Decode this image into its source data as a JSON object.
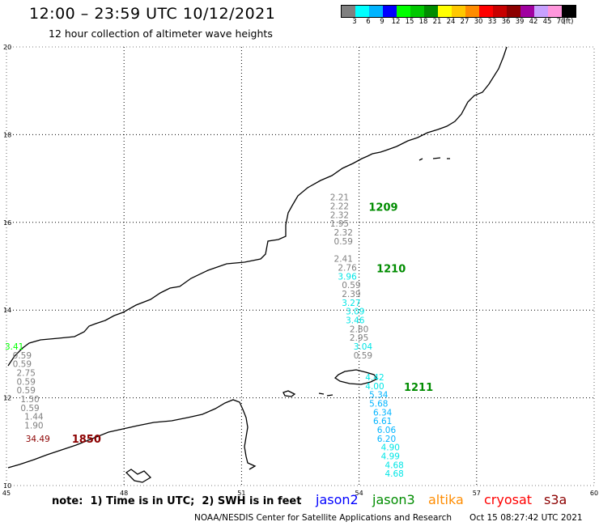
{
  "header": {
    "title": "12:00 – 23:59 UTC 10/12/2021",
    "subtitle": "12 hour collection of altimeter wave heights"
  },
  "color_scale": {
    "colors": [
      "#808080",
      "#00ffff",
      "#00b4ff",
      "#0000ff",
      "#00ff00",
      "#00c800",
      "#008c00",
      "#ffff00",
      "#ffc800",
      "#ff8c00",
      "#ff0000",
      "#c80000",
      "#8c0000",
      "#a000a0",
      "#c8a0ff",
      "#ff96dc",
      "#000000"
    ],
    "labels": [
      "3",
      "6",
      "9",
      "12",
      "15",
      "18",
      "21",
      "24",
      "27",
      "30",
      "33",
      "36",
      "39",
      "42",
      "45",
      "70",
      "(ft)"
    ]
  },
  "axes": {
    "lat_labels": [
      "20",
      "18",
      "16",
      "14",
      "12",
      "10"
    ],
    "lon_labels": [
      "45",
      "48",
      "51",
      "54",
      "57",
      "60"
    ],
    "lat_range": [
      10,
      20
    ],
    "lon_range": [
      45,
      60
    ]
  },
  "satellite_colors": {
    "jason2": "#0000ff",
    "jason3": "#008c00",
    "altika": "#ff8c00",
    "cryosat": "#ff0000",
    "s3a": "#8c0000",
    "low": "#808080",
    "cyan": "#00e6e6",
    "blue": "#00b4ff",
    "green": "#00ff00"
  },
  "passes": [
    {
      "time": "1209",
      "time_color": "#008c00",
      "obs": [
        {
          "lon": 53.5,
          "lat": 16.5,
          "v": "2.21",
          "c": "#808080"
        },
        {
          "lon": 53.5,
          "lat": 16.3,
          "v": "2.22",
          "c": "#808080"
        },
        {
          "lon": 53.5,
          "lat": 16.1,
          "v": "2.32",
          "c": "#808080"
        },
        {
          "lon": 53.5,
          "lat": 15.9,
          "v": "1.95",
          "c": "#808080"
        },
        {
          "lon": 53.6,
          "lat": 15.7,
          "v": "2.32",
          "c": "#808080"
        },
        {
          "lon": 53.6,
          "lat": 15.5,
          "v": "0.59",
          "c": "#808080"
        }
      ]
    },
    {
      "time": "1210",
      "time_color": "#008c00",
      "obs": [
        {
          "lon": 53.6,
          "lat": 15.1,
          "v": "2.41",
          "c": "#808080"
        },
        {
          "lon": 53.7,
          "lat": 14.9,
          "v": "2.76",
          "c": "#808080"
        },
        {
          "lon": 53.7,
          "lat": 14.7,
          "v": "3.96",
          "c": "#00e6e6"
        },
        {
          "lon": 53.8,
          "lat": 14.5,
          "v": "0.59",
          "c": "#808080"
        },
        {
          "lon": 53.8,
          "lat": 14.3,
          "v": "2.39",
          "c": "#808080"
        },
        {
          "lon": 53.8,
          "lat": 14.1,
          "v": "3.27",
          "c": "#00e6e6"
        },
        {
          "lon": 53.9,
          "lat": 13.9,
          "v": "3.09",
          "c": "#00e6e6"
        },
        {
          "lon": 53.9,
          "lat": 13.7,
          "v": "3.46",
          "c": "#00e6e6"
        },
        {
          "lon": 54.0,
          "lat": 13.5,
          "v": "2.80",
          "c": "#808080"
        },
        {
          "lon": 54.0,
          "lat": 13.3,
          "v": "2.95",
          "c": "#808080"
        },
        {
          "lon": 54.1,
          "lat": 13.1,
          "v": "3.04",
          "c": "#00e6e6"
        },
        {
          "lon": 54.1,
          "lat": 12.9,
          "v": "0.59",
          "c": "#808080"
        }
      ]
    },
    {
      "time": "1211",
      "time_color": "#008c00",
      "obs": [
        {
          "lon": 54.4,
          "lat": 12.4,
          "v": "4.42",
          "c": "#00e6e6"
        },
        {
          "lon": 54.4,
          "lat": 12.2,
          "v": "4.00",
          "c": "#00e6e6"
        },
        {
          "lon": 54.5,
          "lat": 12.0,
          "v": "5.34",
          "c": "#00b4ff"
        },
        {
          "lon": 54.5,
          "lat": 11.8,
          "v": "5.68",
          "c": "#00b4ff"
        },
        {
          "lon": 54.6,
          "lat": 11.6,
          "v": "6.34",
          "c": "#00b4ff"
        },
        {
          "lon": 54.6,
          "lat": 11.4,
          "v": "6.61",
          "c": "#00b4ff"
        },
        {
          "lon": 54.7,
          "lat": 11.2,
          "v": "6.06",
          "c": "#00b4ff"
        },
        {
          "lon": 54.7,
          "lat": 11.0,
          "v": "6.20",
          "c": "#00b4ff"
        },
        {
          "lon": 54.8,
          "lat": 10.8,
          "v": "4.90",
          "c": "#00e6e6"
        },
        {
          "lon": 54.8,
          "lat": 10.6,
          "v": "4.99",
          "c": "#00e6e6"
        },
        {
          "lon": 54.9,
          "lat": 10.4,
          "v": "4.68",
          "c": "#00e6e6"
        },
        {
          "lon": 54.9,
          "lat": 10.2,
          "v": "4.68",
          "c": "#00e6e6"
        }
      ]
    },
    {
      "time": "1850",
      "time_color": "#8c0000",
      "obs": [
        {
          "lon": 45.2,
          "lat": 13.1,
          "v": "3.41",
          "c": "#00ff00"
        },
        {
          "lon": 45.4,
          "lat": 12.9,
          "v": "0.59",
          "c": "#808080"
        },
        {
          "lon": 45.4,
          "lat": 12.7,
          "v": "0.59",
          "c": "#808080"
        },
        {
          "lon": 45.5,
          "lat": 12.5,
          "v": "2.75",
          "c": "#808080"
        },
        {
          "lon": 45.5,
          "lat": 12.3,
          "v": "0.59",
          "c": "#808080"
        },
        {
          "lon": 45.5,
          "lat": 12.1,
          "v": "0.59",
          "c": "#808080"
        },
        {
          "lon": 45.6,
          "lat": 11.9,
          "v": "1.50",
          "c": "#808080"
        },
        {
          "lon": 45.6,
          "lat": 11.7,
          "v": "0.59",
          "c": "#808080"
        },
        {
          "lon": 45.7,
          "lat": 11.5,
          "v": "1.44",
          "c": "#808080"
        },
        {
          "lon": 45.7,
          "lat": 11.3,
          "v": "1.90",
          "c": "#808080"
        },
        {
          "lon": 45.8,
          "lat": 11.0,
          "v": "34.49",
          "c": "#8c0000"
        }
      ]
    }
  ],
  "note": "note:  1) Time is in UTC;  2) SWH is in feet",
  "legend": [
    {
      "name": "jason2",
      "color": "#0000ff"
    },
    {
      "name": "jason3",
      "color": "#008c00"
    },
    {
      "name": "altika",
      "color": "#ff8c00"
    },
    {
      "name": "cryosat",
      "color": "#ff0000"
    },
    {
      "name": "s3a",
      "color": "#8c0000"
    }
  ],
  "footer": {
    "center": "NOAA/NESDIS Center for Satellite Applications and Research",
    "right": "Oct 15 08:27:42 UTC 2021"
  }
}
